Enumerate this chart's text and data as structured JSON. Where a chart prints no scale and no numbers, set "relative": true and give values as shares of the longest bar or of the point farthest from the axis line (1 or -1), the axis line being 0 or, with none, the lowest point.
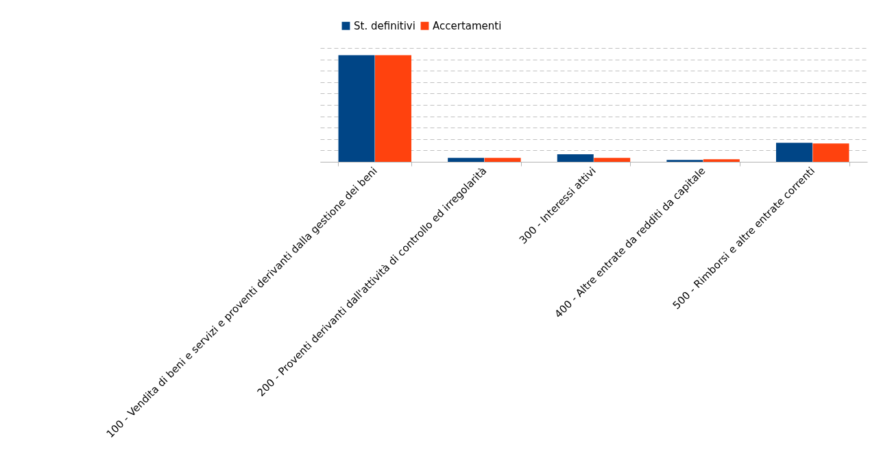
{
  "chart_data": {
    "type": "bar",
    "relative": true,
    "grid": "y",
    "legend": "top",
    "categories": [
      "100 - Vendita di beni e servizi e proventi derivanti dalla gestione dei beni",
      "200 - Proventi derivanti dall'attività di controllo ed irregolarità",
      "300 - Interessi attivi",
      "400 - Altre entrate da redditi da capitale",
      "500 - Rimborsi e altre entrate correnti"
    ],
    "series": [
      {
        "name": "St. definitivi",
        "color": "#004586",
        "values": [
          1,
          0.037,
          0.071,
          0.017,
          0.178
        ]
      },
      {
        "name": "Accertamenti",
        "color": "#ff420e",
        "values": [
          1,
          0.037,
          0.037,
          0.024,
          0.172
        ]
      }
    ]
  }
}
